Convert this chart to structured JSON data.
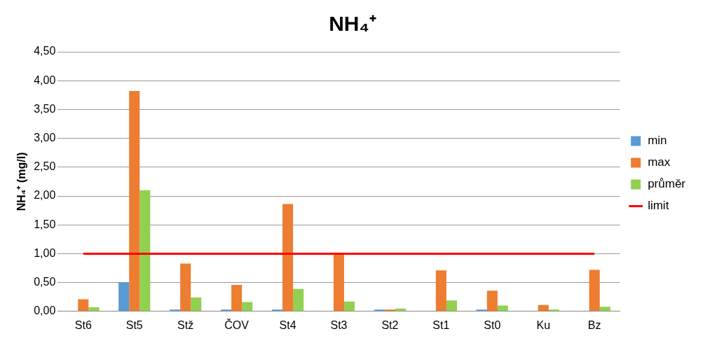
{
  "chart_data": {
    "type": "bar",
    "title": "NH₄⁺",
    "ylabel": "NH₄⁺ (mg/l)",
    "categories": [
      "St6",
      "St5",
      "Stž",
      "ČOV",
      "St4",
      "St3",
      "St2",
      "St1",
      "St0",
      "Ku",
      "Bz"
    ],
    "series": [
      {
        "name": "min",
        "color": "#5b9bd5",
        "values": [
          null,
          0.5,
          0.03,
          0.03,
          0.03,
          null,
          0.03,
          null,
          0.03,
          null,
          null
        ]
      },
      {
        "name": "max",
        "color": "#ed7d31",
        "values": [
          0.21,
          3.82,
          0.83,
          0.46,
          1.86,
          1.01,
          0.03,
          0.71,
          0.36,
          0.11,
          0.72
        ]
      },
      {
        "name": "průměr",
        "color": "#92d050",
        "values": [
          0.07,
          2.1,
          0.24,
          0.16,
          0.39,
          0.17,
          0.05,
          0.19,
          0.1,
          0.03,
          0.08
        ]
      },
      {
        "name": "limit",
        "type": "line",
        "color": "#ff0000",
        "values": [
          1,
          1,
          1,
          1,
          1,
          1,
          1,
          1,
          1,
          1,
          1
        ]
      }
    ],
    "ylim": [
      0,
      4.5
    ],
    "yticks": [
      {
        "value": 0,
        "label": "0,00"
      },
      {
        "value": 0.5,
        "label": "0,50"
      },
      {
        "value": 1,
        "label": "1,00"
      },
      {
        "value": 1.5,
        "label": "1,50"
      },
      {
        "value": 2,
        "label": "2,00"
      },
      {
        "value": 2.5,
        "label": "2,50"
      },
      {
        "value": 3,
        "label": "3,00"
      },
      {
        "value": 3.5,
        "label": "3,50"
      },
      {
        "value": 4,
        "label": "4,00"
      },
      {
        "value": 4.5,
        "label": "4,50"
      }
    ],
    "grid": "y",
    "legend": "right",
    "marker": "none"
  }
}
